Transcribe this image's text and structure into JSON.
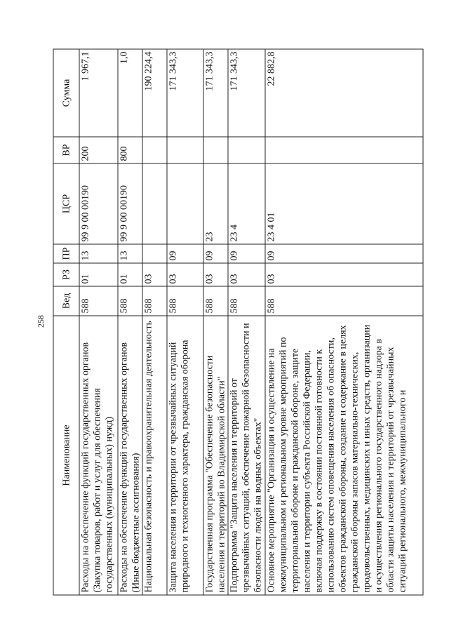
{
  "page_number": "258",
  "table": {
    "headers": [
      "Наименование",
      "Вед",
      "РЗ",
      "ПР",
      "ЦСР",
      "ВР",
      "Сумма"
    ],
    "rows": [
      {
        "name": "Расходы на обеспечение функций государственных органов (Закупка товаров, работ и услуг для обеспечения государственных (муниципальных) нужд)",
        "ved": "588",
        "rz": "01",
        "pr": "13",
        "csr": "99 9 00 00190",
        "vr": "200",
        "sum": "1 967,1"
      },
      {
        "name": "Расходы на обеспечение функций государственных органов (Иные бюджетные ассигнования)",
        "ved": "588",
        "rz": "01",
        "pr": "13",
        "csr": "99 9 00 00190",
        "vr": "800",
        "sum": "1,0"
      },
      {
        "name": "Национальная безопасность и правоохранительная деятельность",
        "ved": "588",
        "rz": "03",
        "pr": "",
        "csr": "",
        "vr": "",
        "sum": "190 224,4"
      },
      {
        "name": "Защита населения и территории от чрезвычайных ситуаций природного и техногенного характера, гражданская оборона",
        "ved": "588",
        "rz": "03",
        "pr": "09",
        "csr": "",
        "vr": "",
        "sum": "171 343,3"
      },
      {
        "name": "Государственная программа \"Обеспечение безопасности населения и территорий во Владимирской области\"",
        "ved": "588",
        "rz": "03",
        "pr": "09",
        "csr": "23",
        "vr": "",
        "sum": "171 343,3"
      },
      {
        "name": "Подпрограмма \"Защита населения и территорий от чрезвычайных ситуаций, обеспечение пожарной безопасности и безопасности людей на водных объектах\"",
        "ved": "588",
        "rz": "03",
        "pr": "09",
        "csr": "23 4",
        "vr": "",
        "sum": "171 343,3"
      },
      {
        "name": "Основное мероприятие \"Организация и осуществление на межмуниципальном и региональном уровне мероприятий по территориальной обороне и гражданской обороне, защите населения и территории субъекта Российской Федерации, включая поддержку в состоянии постоянной готовности к использованию систем оповещения населения об опасности, объектов гражданской обороны, создание и содержание в целях гражданской обороны запасов материально-технических, продовольственных, медицинских и иных средств, организации и осуществления регионального государственного надзора в области защиты населения и территорий от чрезвычайных ситуаций регионального, межмуниципального и",
        "ved": "588",
        "rz": "03",
        "pr": "09",
        "csr": "23 4 01",
        "vr": "",
        "sum": "22 882,8"
      }
    ]
  }
}
